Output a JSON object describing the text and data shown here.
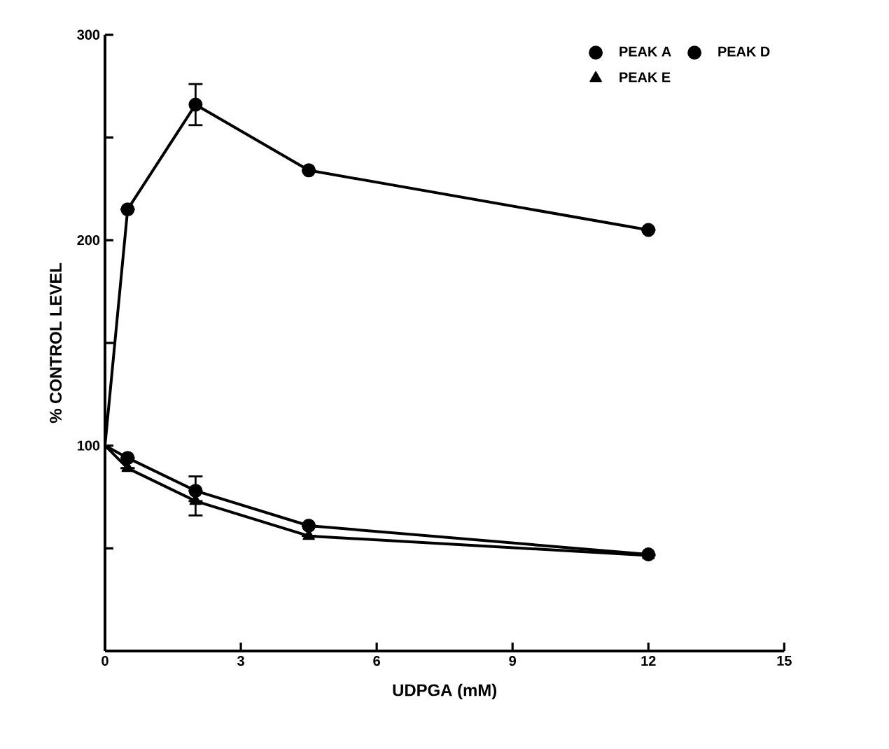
{
  "chart_data": {
    "type": "line",
    "xlabel": "UDPGA  (mM)",
    "ylabel": "%  CONTROL  LEVEL",
    "xlim": [
      0,
      15
    ],
    "ylim": [
      0,
      300
    ],
    "xticks": [
      0,
      3,
      6,
      9,
      12,
      15
    ],
    "yticks": [
      {
        "value": 0,
        "label": null
      },
      {
        "value": 50,
        "label": null
      },
      100,
      {
        "value": 150,
        "label": null
      },
      200,
      {
        "value": 250,
        "label": null
      },
      300
    ],
    "grid": false,
    "legend": "top right",
    "line_style": "solid",
    "series": [
      {
        "name": "PEAK  A",
        "color": "#000000",
        "marker": "circle",
        "x": [
          0,
          0.5,
          2,
          4.5,
          12
        ],
        "values": [
          100,
          215,
          266,
          234,
          205
        ],
        "errors": [
          null,
          null,
          10,
          null,
          null
        ]
      },
      {
        "name": "PEAK  D",
        "color": "#000000",
        "marker": "circle",
        "x": [
          0,
          0.5,
          2,
          4.5,
          12
        ],
        "values": [
          100,
          94,
          78,
          61,
          47
        ],
        "errors": [
          null,
          null,
          [
            78,
            85
          ],
          null,
          null
        ]
      },
      {
        "name": "PEAK  E",
        "color": "#000000",
        "marker": "triangle",
        "x": [
          0,
          0.5,
          2,
          4.5,
          12
        ],
        "values": [
          100,
          89,
          73,
          56,
          46.5
        ],
        "errors": [
          null,
          null,
          [
            66,
            73
          ],
          null,
          null
        ]
      }
    ]
  }
}
